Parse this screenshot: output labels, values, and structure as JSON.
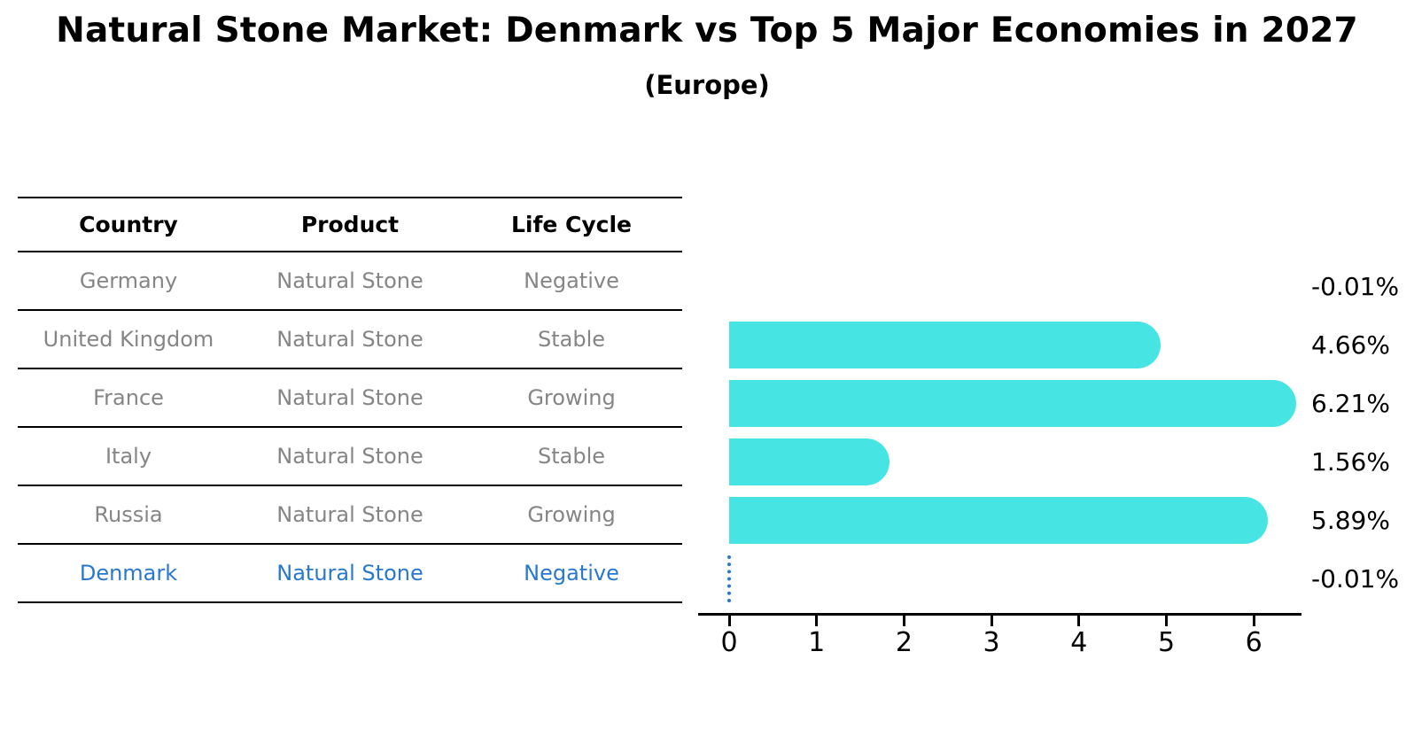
{
  "figure": {
    "title": "Natural Stone Market: Denmark vs Top 5 Major Economies in 2027",
    "subtitle": "(Europe)"
  },
  "table": {
    "headers": [
      "Country",
      "Product",
      "Life Cycle"
    ],
    "rows": [
      {
        "country": "Germany",
        "product": "Natural Stone",
        "life_cycle": "Negative",
        "highlight": false
      },
      {
        "country": "United Kingdom",
        "product": "Natural Stone",
        "life_cycle": "Stable",
        "highlight": false
      },
      {
        "country": "France",
        "product": "Natural Stone",
        "life_cycle": "Growing",
        "highlight": false
      },
      {
        "country": "Italy",
        "product": "Natural Stone",
        "life_cycle": "Stable",
        "highlight": false
      },
      {
        "country": "Russia",
        "product": "Natural Stone",
        "life_cycle": "Growing",
        "highlight": false
      },
      {
        "country": "Denmark",
        "product": "Natural Stone",
        "life_cycle": "Negative",
        "highlight": true
      }
    ]
  },
  "chart_data": {
    "type": "bar",
    "orientation": "horizontal",
    "title": "Natural Stone Market: Denmark vs Top 5 Major Economies in 2027",
    "subtitle": "(Europe)",
    "categories": [
      "Germany",
      "United Kingdom",
      "France",
      "Italy",
      "Russia",
      "Denmark"
    ],
    "values": [
      -0.01,
      4.66,
      6.21,
      1.56,
      5.89,
      -0.01
    ],
    "value_labels": [
      "-0.01%",
      "4.66%",
      "6.21%",
      "1.56%",
      "5.89%",
      "-0.01%"
    ],
    "x_ticks": [
      "0",
      "1",
      "2",
      "3",
      "4",
      "5",
      "6"
    ],
    "xlim": [
      0,
      6.54
    ],
    "grid": false,
    "legend": null,
    "bar_color": "#47E4E4",
    "highlight_index": 5,
    "highlight_marker": "dotted-zero-line",
    "highlight_color": "#2878D0"
  },
  "colors": {
    "text": "#000000",
    "muted_text": "#858585",
    "axis": "#000000",
    "bar": "#47E4E4",
    "highlight": "#2878D0"
  }
}
